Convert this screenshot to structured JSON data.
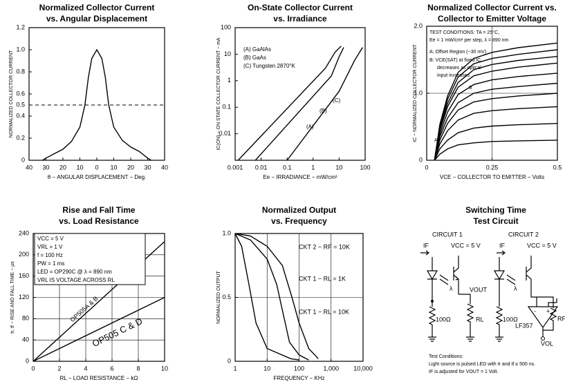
{
  "chart_data": [
    {
      "type": "line",
      "title": [
        "Normalized Collector Current",
        "vs. Angular Displacement"
      ],
      "xlabel": "θ − ANGULAR DISPLACEMENT − Deg.",
      "ylabel": "NORMALIZED COLLECTOR CURRENT",
      "x": [
        -32,
        -30,
        -25,
        -20,
        -15,
        -10,
        -7,
        -5,
        -3,
        0,
        3,
        5,
        7,
        10,
        15,
        20,
        25,
        30,
        32
      ],
      "series": [
        {
          "color": "#000000",
          "values": [
            0,
            0.02,
            0.06,
            0.1,
            0.17,
            0.3,
            0.5,
            0.75,
            0.92,
            1.0,
            0.92,
            0.75,
            0.5,
            0.3,
            0.18,
            0.12,
            0.08,
            0.02,
            0
          ]
        }
      ],
      "xlim": [
        -40,
        40
      ],
      "xticks": [
        {
          "value": -40,
          "label": "40"
        },
        {
          "value": -30,
          "label": "30"
        },
        {
          "value": -20,
          "label": "20"
        },
        {
          "value": -10,
          "label": "10"
        },
        0,
        10,
        20,
        30,
        40
      ],
      "ylim": [
        0,
        1.2
      ],
      "yticks": [
        0,
        0.2,
        0.4,
        0.5,
        0.6,
        0.8,
        {
          "value": 1,
          "label": "1.0"
        },
        1.2
      ],
      "reference_line": 0.5,
      "grid": false
    },
    {
      "type": "line",
      "title": [
        "On-State Collector Current",
        "vs. Irradiance"
      ],
      "xlabel": "Ee − IRRADIANCE − mW/cm²",
      "ylabel": "IC(ON) − ON STATE COLLECTOR CURRENT − mA",
      "xscale": "log",
      "yscale": "log",
      "legend": "top-left",
      "series": [
        {
          "name": "(A) GaAlAs",
          "color": "#000000",
          "x": [
            0.0013,
            3,
            7,
            12
          ],
          "values": [
            0.001,
            3,
            12,
            20
          ]
        },
        {
          "name": "(B) GaAs",
          "color": "#000000",
          "x": [
            0.006,
            5,
            10,
            15
          ],
          "values": [
            0.001,
            1.5,
            8,
            18
          ]
        },
        {
          "name": "(C) Tungsten 2870°K",
          "color": "#000000",
          "x": [
            0.1,
            10,
            40,
            80
          ],
          "values": [
            0.001,
            0.4,
            6,
            18
          ]
        }
      ],
      "annotations": [
        "(A)",
        "(B)",
        "(C)"
      ],
      "xlim": [
        0.001,
        100
      ],
      "xticks": [
        0.001,
        0.01,
        0.1,
        1,
        10,
        100
      ],
      "ylim": [
        0.001,
        100
      ],
      "yticks": [
        0.01,
        0.1,
        1,
        10,
        100
      ],
      "grid": false
    },
    {
      "type": "line",
      "title": [
        "Normalized Collector Current vs.",
        "Collector to Emitter Voltage"
      ],
      "xlabel": "VCE − COLLECTOR TO EMITTER − Volts",
      "ylabel": "IC − NORMALIZED COLLECTOR CURRENT",
      "x": [
        0.03,
        0.05,
        0.08,
        0.12,
        0.18,
        0.25,
        0.35,
        0.5
      ],
      "series": [
        {
          "color": "#000000",
          "values": [
            0,
            0.09,
            0.17,
            0.23,
            0.26,
            0.28,
            0.29,
            0.3
          ]
        },
        {
          "color": "#000000",
          "values": [
            0,
            0.17,
            0.3,
            0.41,
            0.48,
            0.51,
            0.53,
            0.55
          ]
        },
        {
          "color": "#000000",
          "values": [
            0,
            0.24,
            0.44,
            0.6,
            0.7,
            0.74,
            0.77,
            0.8
          ]
        },
        {
          "color": "#000000",
          "values": [
            0,
            0.3,
            0.55,
            0.75,
            0.87,
            0.92,
            0.96,
            1.0
          ]
        },
        {
          "color": "#000000",
          "values": [
            0,
            0.35,
            0.63,
            0.86,
            1.0,
            1.06,
            1.1,
            1.15
          ]
        },
        {
          "color": "#000000",
          "values": [
            0,
            0.39,
            0.72,
            0.98,
            1.13,
            1.2,
            1.25,
            1.3
          ]
        },
        {
          "color": "#000000",
          "values": [
            0,
            0.44,
            0.8,
            1.09,
            1.26,
            1.33,
            1.39,
            1.45
          ]
        },
        {
          "color": "#000000",
          "values": [
            0,
            0.47,
            0.85,
            1.16,
            1.35,
            1.43,
            1.49,
            1.55
          ]
        },
        {
          "color": "#000000",
          "values": [
            0,
            0.5,
            0.91,
            1.24,
            1.44,
            1.52,
            1.58,
            1.65
          ]
        },
        {
          "color": "#000000",
          "values": [
            0,
            0.53,
            0.96,
            1.31,
            1.52,
            1.61,
            1.68,
            1.75
          ]
        }
      ],
      "annotations": [
        "TEST CONDITIONS: TA = 25°C,",
        "Ee = 1 mW/cm² per step, λ = 890 nm",
        "A: Offset Region (~30 mV)",
        "B: VCE(SAT) at fixed IC,",
        "decreases as optical",
        "input increases",
        "A",
        "B"
      ],
      "xlim": [
        0,
        0.5
      ],
      "xticks": [
        0,
        0.25,
        0.5
      ],
      "ylim": [
        0,
        2
      ],
      "yticks": [
        0,
        {
          "value": 1,
          "label": "1.0"
        },
        {
          "value": 2,
          "label": "2.0"
        }
      ],
      "grid": true
    },
    {
      "type": "line",
      "title": [
        "Rise and Fall Time",
        "vs. Load Resistance"
      ],
      "xlabel": "RL − LOAD RESISTANCE − kΩ",
      "ylabel": "tr, tf − RISE AND FALL TIME − μs",
      "x": [
        0,
        10
      ],
      "series": [
        {
          "name": "OP505A & B",
          "color": "#000000",
          "values": [
            0,
            225
          ]
        },
        {
          "name": "OP505 C & D",
          "color": "#000000",
          "values": [
            0,
            120
          ]
        }
      ],
      "annotations": [
        "VCC = 5 V",
        "VRL = 1 V",
        "f = 100 Hz",
        "PW = 1 ms",
        "LED = OP290C @ λ = 890 nm",
        "VRL IS VOLTAGE ACROSS RL"
      ],
      "xlim": [
        0,
        10
      ],
      "xticks": [
        0,
        2,
        4,
        6,
        8,
        10
      ],
      "ylim": [
        0,
        240
      ],
      "yticks": [
        0,
        40,
        80,
        120,
        160,
        200,
        240
      ],
      "grid": true
    },
    {
      "type": "line",
      "title": [
        "Normalized Output",
        "vs. Frequency"
      ],
      "xlabel": "FREQUENCY − KHz",
      "ylabel": "NORMALIZED OUTPUT",
      "xscale": "log",
      "series": [
        {
          "name": "CKT 2 − RF = 10K",
          "color": "#000000",
          "x": [
            1,
            3,
            10,
            30,
            60,
            100,
            200,
            400
          ],
          "values": [
            1,
            0.98,
            0.9,
            0.75,
            0.5,
            0.3,
            0.1,
            0.02
          ]
        },
        {
          "name": "CKT 1 − RL = 1K",
          "color": "#000000",
          "x": [
            1,
            3,
            10,
            20,
            30,
            50,
            100,
            200
          ],
          "values": [
            1,
            0.95,
            0.8,
            0.6,
            0.4,
            0.15,
            0.05,
            0.01
          ]
        },
        {
          "name": "CKT 1 − RL = 10K",
          "color": "#000000",
          "x": [
            1,
            1.6,
            2.7,
            4.5,
            10,
            55,
            100
          ],
          "values": [
            1,
            0.9,
            0.6,
            0.3,
            0.1,
            0.02,
            0.01
          ]
        }
      ],
      "xlim": [
        1,
        10000
      ],
      "xticks": [
        1,
        10,
        100,
        {
          "value": 1000,
          "label": "1,000"
        },
        {
          "value": 10000,
          "label": "10,000"
        }
      ],
      "ylim": [
        0,
        1
      ],
      "yticks": [
        0,
        0.5,
        {
          "value": 1,
          "label": "1.0"
        }
      ],
      "grid": true
    }
  ],
  "circuit": {
    "title": [
      "Switching Time",
      "Test Circuit"
    ],
    "circuit1": {
      "label": "CIRCUIT 1",
      "if": "IF",
      "vcc": "VCC = 5 V",
      "lambda": "λ",
      "vout": "VOUT",
      "r1": "100Ω",
      "rl": "RL"
    },
    "circuit2": {
      "label": "CIRCUIT 2",
      "if": "IF",
      "vcc": "VCC = 5 V",
      "lambda": "λ",
      "r1": "100Ω",
      "rf": "RF",
      "opamp": "LF357",
      "minus": "-",
      "plus": "+",
      "vol": "VOL"
    },
    "notes": [
      "Test Conditions:",
      "Light source is pulsed LED with tr and tf ≤ 500 ns.",
      "IF is adjusted for VOUT = 1 Volt."
    ]
  }
}
